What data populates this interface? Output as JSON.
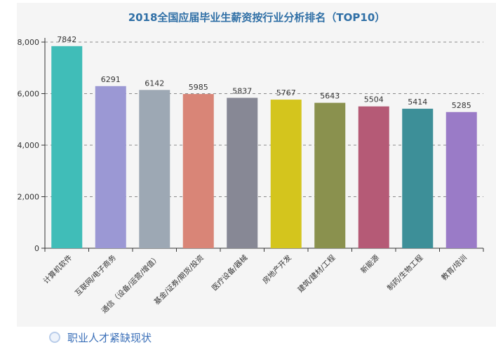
{
  "caption": {
    "text": "职业人才紧缺现状"
  },
  "chart_data": {
    "type": "bar",
    "title": "2018全国应届毕业生薪资按行业分析排名（TOP10）",
    "xlabel": "",
    "ylabel": "",
    "ylim": [
      0,
      8000
    ],
    "yticks": [
      0,
      2000,
      4000,
      6000,
      8000
    ],
    "ytick_labels": [
      "0",
      "2,000",
      "4,000",
      "6,000",
      "8,000"
    ],
    "grid": "y-dashed",
    "categories": [
      "计算机软件",
      "互联网/电子商务",
      "通信（设备/运营/增值）",
      "基金/证券/期货/投资",
      "医疗设备/器械",
      "房地产开发",
      "建筑/建材/工程",
      "新能源",
      "制药/生物工程",
      "教育/培训"
    ],
    "values": [
      7842,
      6291,
      6142,
      5985,
      5837,
      5767,
      5643,
      5504,
      5414,
      5285
    ],
    "colors": [
      "#40bdb8",
      "#9b98d4",
      "#9da8b4",
      "#d98577",
      "#878895",
      "#d4c51d",
      "#8a914e",
      "#b55a76",
      "#3d8f98",
      "#9a7bc7"
    ]
  }
}
